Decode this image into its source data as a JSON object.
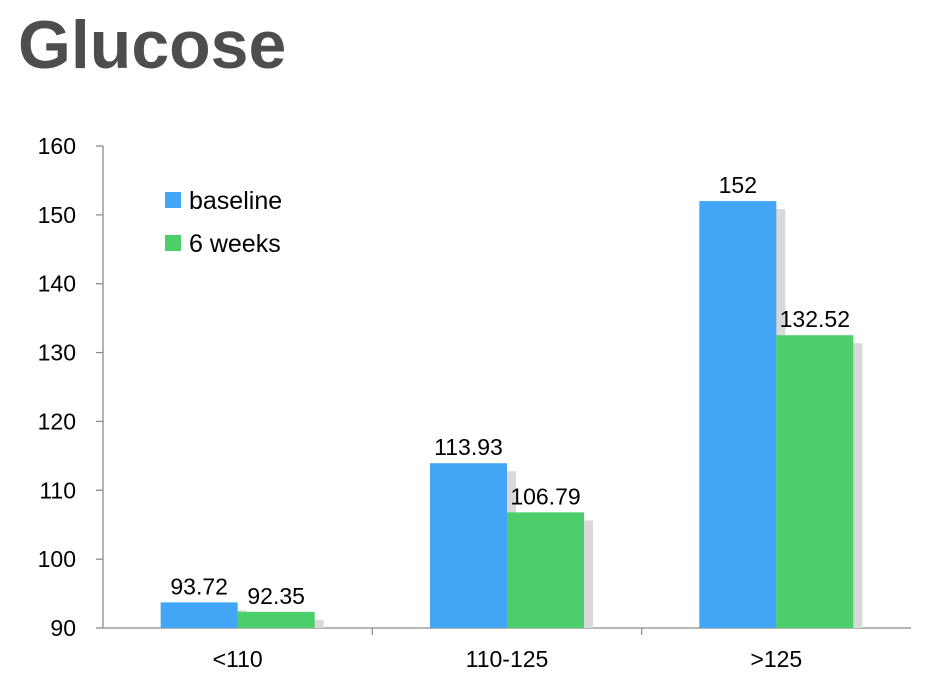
{
  "title": "Glucose",
  "chart_data": {
    "type": "bar",
    "title": "Glucose",
    "xlabel": "",
    "ylabel": "",
    "categories": [
      "<110",
      "110-125",
      ">125"
    ],
    "series": [
      {
        "name": "baseline",
        "values": [
          93.72,
          113.93,
          152
        ],
        "labels": [
          "93.72",
          "113.93",
          "152"
        ],
        "color": "#42a5f5"
      },
      {
        "name": "6 weeks",
        "values": [
          92.35,
          106.79,
          132.52
        ],
        "labels": [
          "92.35",
          "106.79",
          "132.52"
        ],
        "color": "#4ccf6a"
      }
    ],
    "ylim": [
      90,
      160
    ],
    "yticks": [
      90,
      100,
      110,
      120,
      130,
      140,
      150,
      160
    ],
    "ytick_labels": [
      "90",
      "100",
      "110",
      "120",
      "130",
      "140",
      "150",
      "160"
    ],
    "legend_position": "top-left",
    "grid": false
  }
}
